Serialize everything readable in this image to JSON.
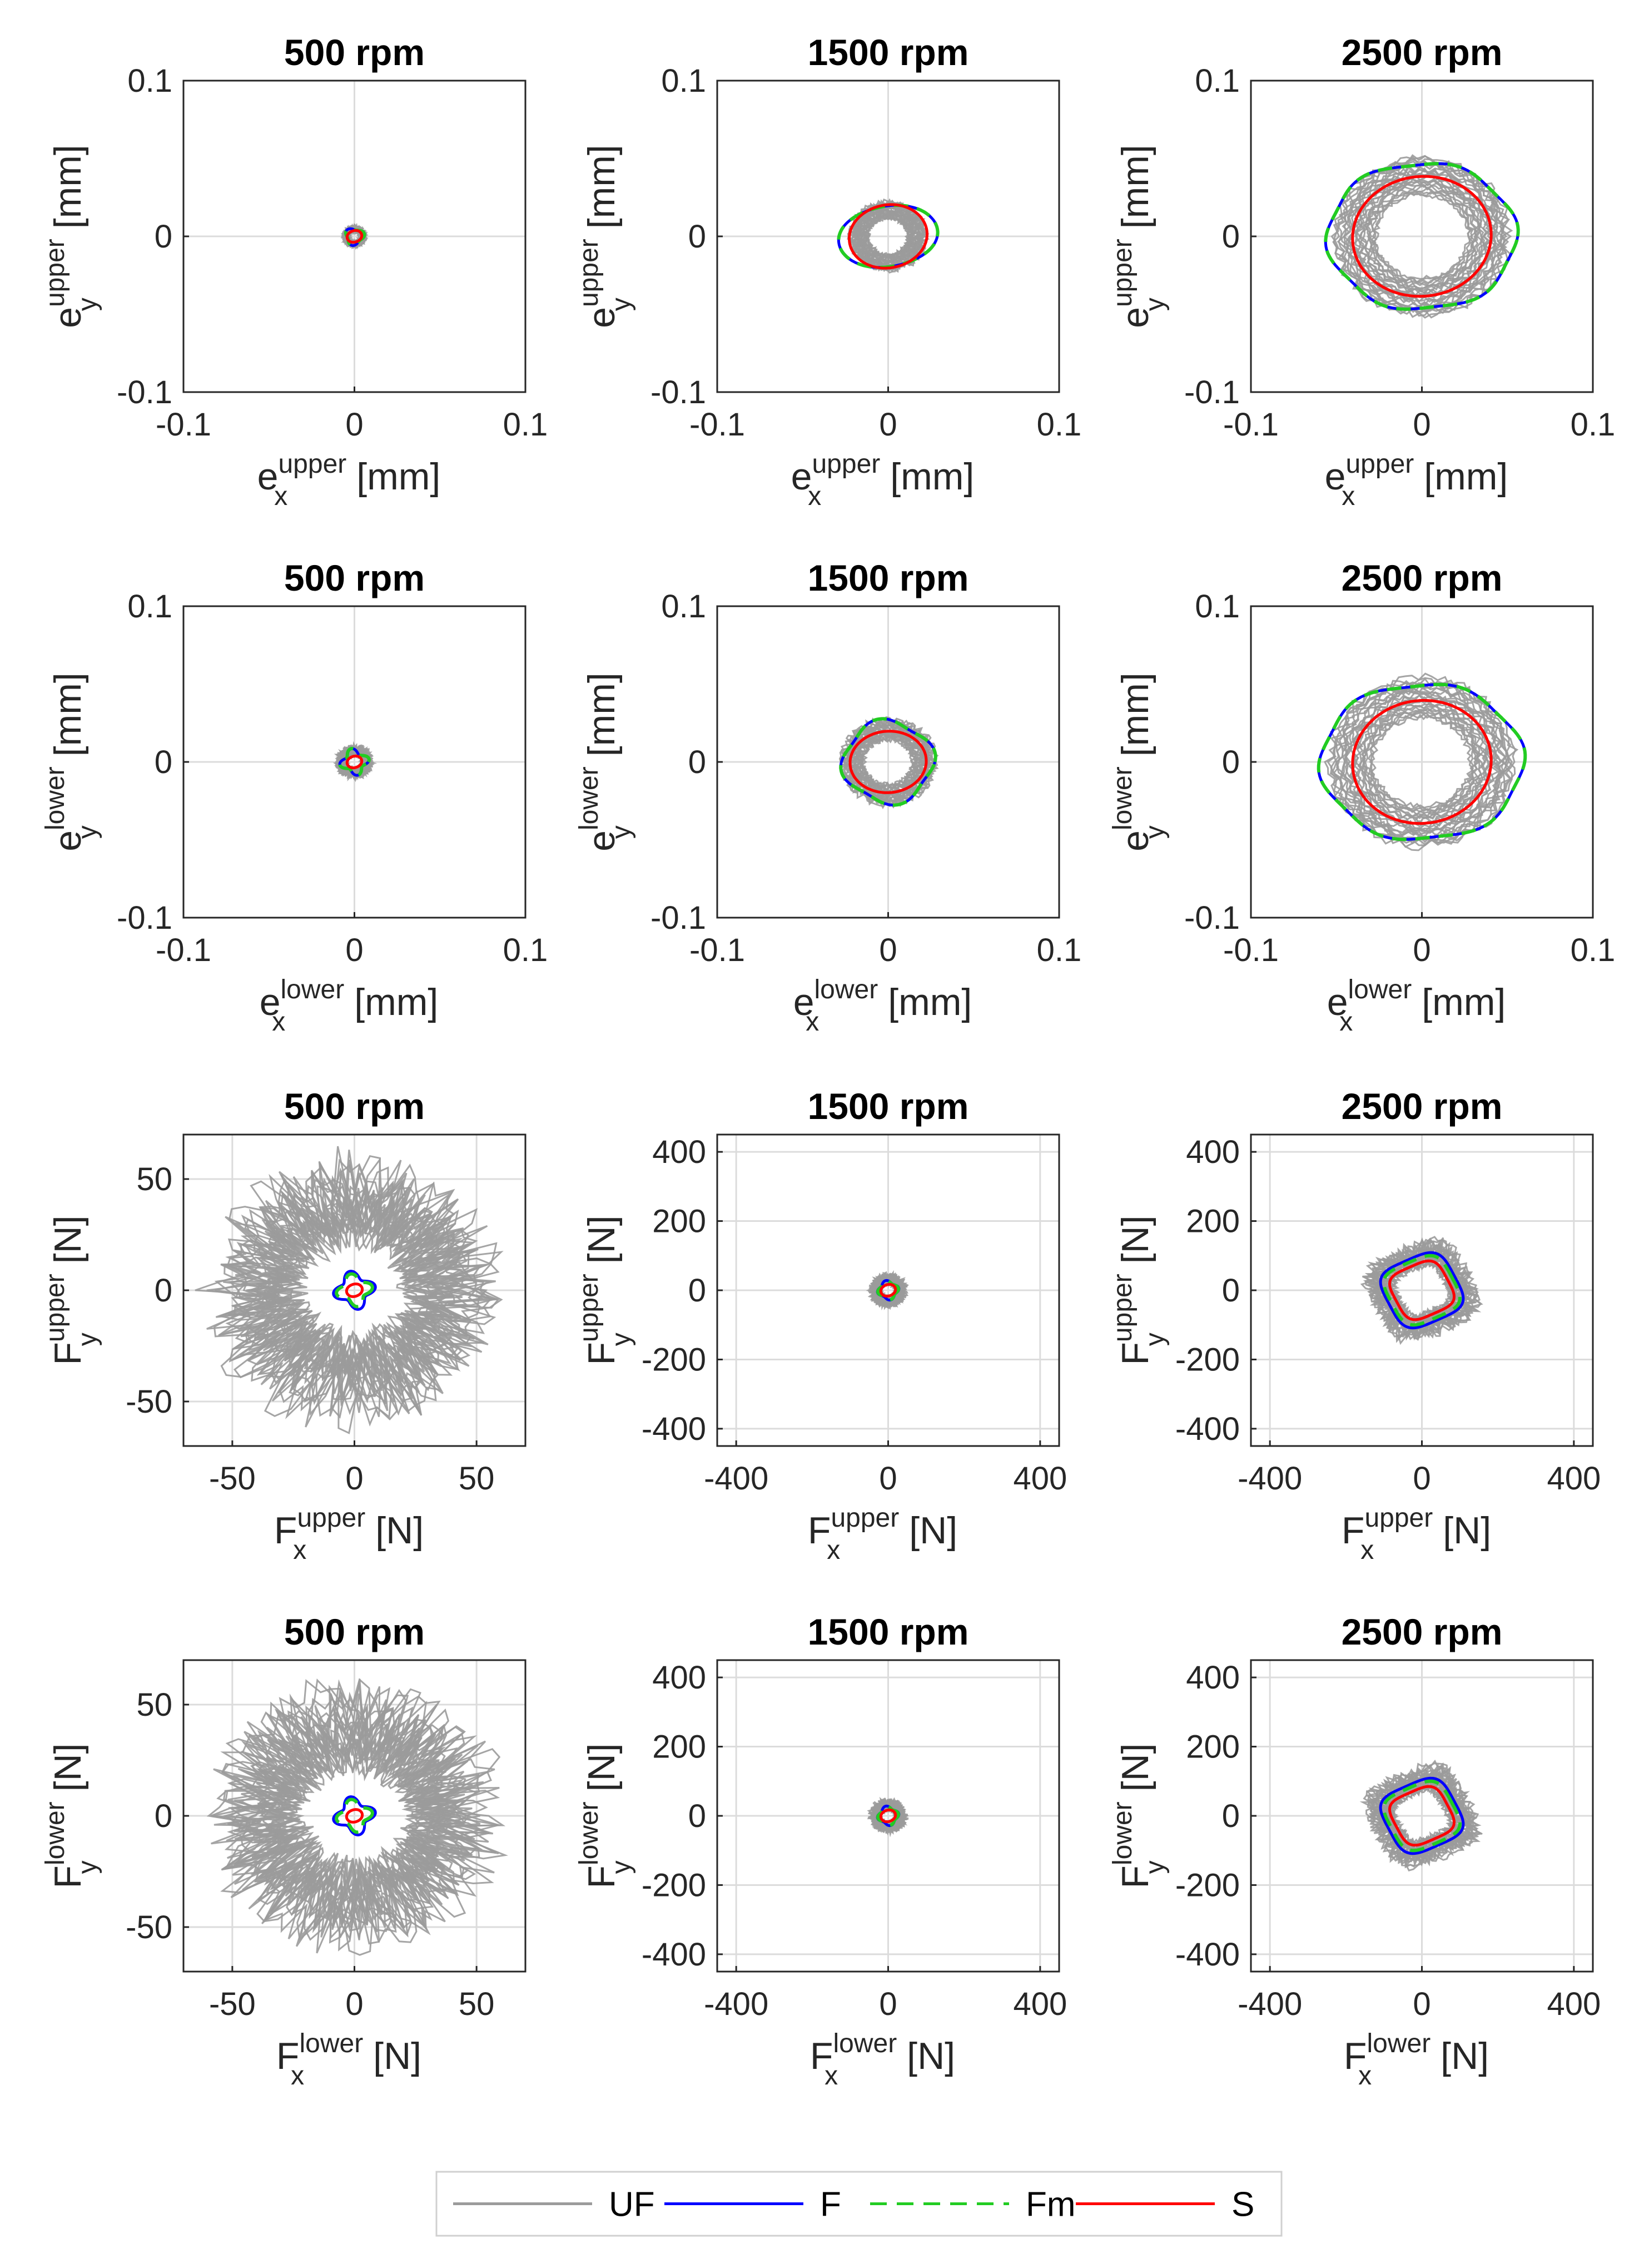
{
  "figure": {
    "legend": {
      "placement": "bottom-center",
      "entries": [
        {
          "label": "UF",
          "color": "#9b9b9b",
          "dash": "solid"
        },
        {
          "label": "F",
          "color": "#0000ff",
          "dash": "solid"
        },
        {
          "label": "Fm",
          "color": "#22cc22",
          "dash": "dashed"
        },
        {
          "label": "S",
          "color": "#ff0000",
          "dash": "solid"
        }
      ]
    }
  },
  "chart_data": [
    {
      "type": "line",
      "title": "500 rpm",
      "xlabel": {
        "base": "e",
        "sub": "x",
        "sup": "upper",
        "unit": "[mm]"
      },
      "ylabel": {
        "base": "e",
        "sub": "y",
        "sup": "upper",
        "unit": "[mm]"
      },
      "xlim": [
        -0.1,
        0.1
      ],
      "ylim": [
        -0.1,
        0.1
      ],
      "xticks": [
        "-0.1",
        "0",
        "0.1"
      ],
      "yticks": [
        "-0.1",
        "0",
        "0.1"
      ],
      "grid": true,
      "series": [
        {
          "name": "UF",
          "kind": "band",
          "radius": 0.006,
          "spread": 0.2
        },
        {
          "name": "F",
          "radius": 0.005,
          "wobble": [
            0.2,
            3
          ]
        },
        {
          "name": "Fm",
          "radius": 0.005,
          "wobble": [
            0.2,
            3
          ]
        },
        {
          "name": "S",
          "radius": 0.004,
          "wobble": [
            0.1,
            2
          ]
        }
      ]
    },
    {
      "type": "line",
      "title": "1500 rpm",
      "xlabel": {
        "base": "e",
        "sub": "x",
        "sup": "upper",
        "unit": "[mm]"
      },
      "ylabel": {
        "base": "e",
        "sub": "y",
        "sup": "upper",
        "unit": "[mm]"
      },
      "xlim": [
        -0.1,
        0.1
      ],
      "ylim": [
        -0.1,
        0.1
      ],
      "xticks": [
        "-0.1",
        "0",
        "0.1"
      ],
      "yticks": [
        "-0.1",
        "0",
        "0.1"
      ],
      "grid": true,
      "series": [
        {
          "name": "UF",
          "kind": "band",
          "radius": 0.021,
          "spread": 0.1
        },
        {
          "name": "F",
          "rx": 0.027,
          "ry": 0.021,
          "wobble": [
            0.1,
            2
          ]
        },
        {
          "name": "Fm",
          "rx": 0.027,
          "ry": 0.021,
          "wobble": [
            0.1,
            2
          ]
        },
        {
          "name": "S",
          "rx": 0.022,
          "ry": 0.021,
          "wobble": [
            0.05,
            2
          ]
        }
      ]
    },
    {
      "type": "line",
      "title": "2500 rpm",
      "xlabel": {
        "base": "e",
        "sub": "x",
        "sup": "upper",
        "unit": "[mm]"
      },
      "ylabel": {
        "base": "e",
        "sub": "y",
        "sup": "upper",
        "unit": "[mm]"
      },
      "xlim": [
        -0.1,
        0.1
      ],
      "ylim": [
        -0.1,
        0.1
      ],
      "xticks": [
        "-0.1",
        "0",
        "0.1"
      ],
      "yticks": [
        "-0.1",
        "0",
        "0.1"
      ],
      "grid": true,
      "series": [
        {
          "name": "UF",
          "kind": "band",
          "radius": 0.049,
          "spread": 0.06
        },
        {
          "name": "F",
          "rx": 0.055,
          "ry": 0.047,
          "cx": 0.0,
          "wobble": [
            0.03,
            6
          ]
        },
        {
          "name": "Fm",
          "rx": 0.055,
          "ry": 0.047,
          "cx": 0.0,
          "wobble": [
            0.03,
            6
          ]
        },
        {
          "name": "S",
          "rx": 0.04,
          "ry": 0.039,
          "wobble": [
            0.02,
            2
          ]
        }
      ]
    },
    {
      "type": "line",
      "title": "500 rpm",
      "xlabel": {
        "base": "e",
        "sub": "x",
        "sup": "lower",
        "unit": "[mm]"
      },
      "ylabel": {
        "base": "e",
        "sub": "y",
        "sup": "lower",
        "unit": "[mm]"
      },
      "xlim": [
        -0.1,
        0.1
      ],
      "ylim": [
        -0.1,
        0.1
      ],
      "xticks": [
        "-0.1",
        "0",
        "0.1"
      ],
      "yticks": [
        "-0.1",
        "0",
        "0.1"
      ],
      "grid": true,
      "series": [
        {
          "name": "UF",
          "kind": "band",
          "radius": 0.009,
          "spread": 0.25
        },
        {
          "name": "F",
          "radius": 0.007,
          "wobble": [
            0.25,
            4
          ]
        },
        {
          "name": "Fm",
          "radius": 0.007,
          "wobble": [
            0.25,
            4
          ]
        },
        {
          "name": "S",
          "radius": 0.004,
          "wobble": [
            0.1,
            2
          ]
        }
      ]
    },
    {
      "type": "line",
      "title": "1500 rpm",
      "xlabel": {
        "base": "e",
        "sub": "x",
        "sup": "lower",
        "unit": "[mm]"
      },
      "ylabel": {
        "base": "e",
        "sub": "y",
        "sup": "lower",
        "unit": "[mm]"
      },
      "xlim": [
        -0.1,
        0.1
      ],
      "ylim": [
        -0.1,
        0.1
      ],
      "xticks": [
        "-0.1",
        "0",
        "0.1"
      ],
      "yticks": [
        "-0.1",
        "0",
        "0.1"
      ],
      "grid": true,
      "series": [
        {
          "name": "UF",
          "kind": "band",
          "radius": 0.026,
          "spread": 0.1
        },
        {
          "name": "F",
          "radius": 0.026,
          "wobble": [
            0.08,
            4
          ]
        },
        {
          "name": "Fm",
          "radius": 0.026,
          "wobble": [
            0.08,
            4
          ]
        },
        {
          "name": "S",
          "rx": 0.022,
          "ry": 0.02,
          "wobble": [
            0.02,
            2
          ]
        }
      ]
    },
    {
      "type": "line",
      "title": "2500 rpm",
      "xlabel": {
        "base": "e",
        "sub": "x",
        "sup": "lower",
        "unit": "[mm]"
      },
      "ylabel": {
        "base": "e",
        "sub": "y",
        "sup": "lower",
        "unit": "[mm]"
      },
      "xlim": [
        -0.1,
        0.1
      ],
      "ylim": [
        -0.1,
        0.1
      ],
      "xticks": [
        "-0.1",
        "0",
        "0.1"
      ],
      "yticks": [
        "-0.1",
        "0",
        "0.1"
      ],
      "grid": true,
      "series": [
        {
          "name": "UF",
          "kind": "band",
          "radius": 0.052,
          "spread": 0.06
        },
        {
          "name": "F",
          "rx": 0.059,
          "ry": 0.05,
          "wobble": [
            0.03,
            6
          ]
        },
        {
          "name": "Fm",
          "rx": 0.059,
          "ry": 0.05,
          "wobble": [
            0.03,
            6
          ]
        },
        {
          "name": "S",
          "rx": 0.04,
          "ry": 0.04,
          "wobble": [
            0.02,
            2
          ]
        }
      ]
    },
    {
      "type": "line",
      "title": "500 rpm",
      "xlabel": {
        "base": "F",
        "sub": "x",
        "sup": "upper",
        "unit": "[N]"
      },
      "ylabel": {
        "base": "F",
        "sub": "y",
        "sup": "upper",
        "unit": "[N]"
      },
      "xlim": [
        -70,
        70
      ],
      "ylim": [
        -70,
        70
      ],
      "xticks": [
        "-50",
        "0",
        "50"
      ],
      "yticks": [
        "-50",
        "0",
        "50"
      ],
      "grid": true,
      "series": [
        {
          "name": "UF",
          "kind": "band",
          "radius": 47,
          "spread": 0.35
        },
        {
          "name": "F",
          "radius": 7,
          "wobble": [
            0.25,
            4
          ]
        },
        {
          "name": "Fm",
          "radius": 6,
          "wobble": [
            0.25,
            4
          ]
        },
        {
          "name": "S",
          "radius": 3,
          "wobble": [
            0.1,
            2
          ]
        }
      ]
    },
    {
      "type": "line",
      "title": "1500 rpm",
      "xlabel": {
        "base": "F",
        "sub": "x",
        "sup": "upper",
        "unit": "[N]"
      },
      "ylabel": {
        "base": "F",
        "sub": "y",
        "sup": "upper",
        "unit": "[N]"
      },
      "xlim": [
        -450,
        450
      ],
      "ylim": [
        -450,
        450
      ],
      "xticks": [
        "-400",
        "0",
        "400"
      ],
      "yticks": [
        "-400",
        "-200",
        "0",
        "200",
        "400"
      ],
      "grid": true,
      "series": [
        {
          "name": "UF",
          "kind": "band",
          "radius": 40,
          "spread": 0.3
        },
        {
          "name": "F",
          "radius": 25,
          "wobble": [
            0.15,
            4
          ]
        },
        {
          "name": "Fm",
          "radius": 24,
          "wobble": [
            0.15,
            4
          ]
        },
        {
          "name": "S",
          "radius": 18,
          "wobble": [
            0.1,
            2
          ]
        }
      ]
    },
    {
      "type": "line",
      "title": "2500 rpm",
      "xlabel": {
        "base": "F",
        "sub": "x",
        "sup": "upper",
        "unit": "[N]"
      },
      "ylabel": {
        "base": "F",
        "sub": "y",
        "sup": "upper",
        "unit": "[N]"
      },
      "xlim": [
        -450,
        450
      ],
      "ylim": [
        -450,
        450
      ],
      "xticks": [
        "-400",
        "0",
        "400"
      ],
      "yticks": [
        "-400",
        "-200",
        "0",
        "200",
        "400"
      ],
      "grid": true,
      "series": [
        {
          "name": "UF",
          "kind": "band",
          "radius": 125,
          "spread": 0.15,
          "shape": "diamond"
        },
        {
          "name": "F",
          "radius": 100,
          "shape": "diamond"
        },
        {
          "name": "Fm",
          "radius": 92,
          "shape": "diamond"
        },
        {
          "name": "S",
          "radius": 78,
          "shape": "diamond"
        }
      ]
    },
    {
      "type": "line",
      "title": "500 rpm",
      "xlabel": {
        "base": "F",
        "sub": "x",
        "sup": "lower",
        "unit": "[N]"
      },
      "ylabel": {
        "base": "F",
        "sub": "y",
        "sup": "lower",
        "unit": "[N]"
      },
      "xlim": [
        -70,
        70
      ],
      "ylim": [
        -70,
        70
      ],
      "xticks": [
        "-50",
        "0",
        "50"
      ],
      "yticks": [
        "-50",
        "0",
        "50"
      ],
      "grid": true,
      "series": [
        {
          "name": "UF",
          "kind": "band",
          "radius": 47,
          "spread": 0.35
        },
        {
          "name": "F",
          "radius": 7,
          "wobble": [
            0.25,
            4
          ]
        },
        {
          "name": "Fm",
          "radius": 6,
          "wobble": [
            0.25,
            4
          ]
        },
        {
          "name": "S",
          "radius": 3,
          "wobble": [
            0.1,
            2
          ]
        }
      ]
    },
    {
      "type": "line",
      "title": "1500 rpm",
      "xlabel": {
        "base": "F",
        "sub": "x",
        "sup": "lower",
        "unit": "[N]"
      },
      "ylabel": {
        "base": "F",
        "sub": "y",
        "sup": "lower",
        "unit": "[N]"
      },
      "xlim": [
        -450,
        450
      ],
      "ylim": [
        -450,
        450
      ],
      "xticks": [
        "-400",
        "0",
        "400"
      ],
      "yticks": [
        "-400",
        "-200",
        "0",
        "200",
        "400"
      ],
      "grid": true,
      "series": [
        {
          "name": "UF",
          "kind": "band",
          "radius": 40,
          "spread": 0.3
        },
        {
          "name": "F",
          "radius": 25,
          "wobble": [
            0.15,
            4
          ]
        },
        {
          "name": "Fm",
          "radius": 24,
          "wobble": [
            0.15,
            4
          ]
        },
        {
          "name": "S",
          "radius": 18,
          "wobble": [
            0.1,
            2
          ]
        }
      ]
    },
    {
      "type": "line",
      "title": "2500 rpm",
      "xlabel": {
        "base": "F",
        "sub": "x",
        "sup": "lower",
        "unit": "[N]"
      },
      "ylabel": {
        "base": "F",
        "sub": "y",
        "sup": "lower",
        "unit": "[N]"
      },
      "xlim": [
        -450,
        450
      ],
      "ylim": [
        -450,
        450
      ],
      "xticks": [
        "-400",
        "0",
        "400"
      ],
      "yticks": [
        "-400",
        "-200",
        "0",
        "200",
        "400"
      ],
      "grid": true,
      "series": [
        {
          "name": "UF",
          "kind": "band",
          "radius": 125,
          "spread": 0.15,
          "shape": "diamond"
        },
        {
          "name": "F",
          "radius": 100,
          "shape": "diamond"
        },
        {
          "name": "Fm",
          "radius": 92,
          "shape": "diamond"
        },
        {
          "name": "S",
          "radius": 78,
          "shape": "diamond"
        }
      ]
    }
  ]
}
